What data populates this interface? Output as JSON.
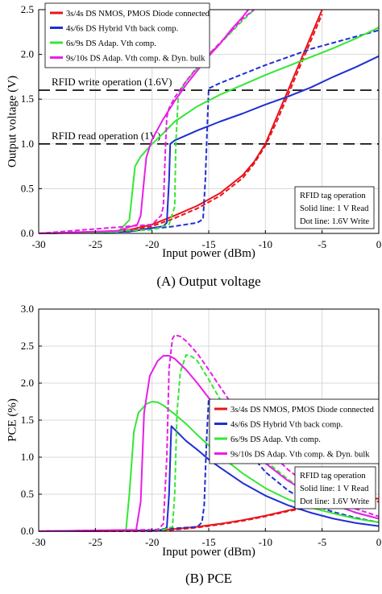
{
  "colors": {
    "red": "#e8141a",
    "blue": "#1f2fd0",
    "green": "#36e636",
    "magenta": "#e81ee8",
    "ref_line": "#000000"
  },
  "chart_data": [
    {
      "type": "line",
      "caption": "(A) Output voltage",
      "xlabel": "Input power (dBm)",
      "ylabel": "Output voltage (V)",
      "xlim": [
        -30,
        0
      ],
      "ylim": [
        0,
        2.5
      ],
      "xticks": [
        "-30",
        "-25",
        "-20",
        "-15",
        "-10",
        "-5",
        "0"
      ],
      "yticks": [
        "0.0",
        "0.5",
        "1.0",
        "1.5",
        "2.0",
        "2.5"
      ],
      "grid": true,
      "legend_position": "top-left",
      "legend": [
        "3s/4s DS NMOS, PMOS Diode connected",
        "4s/6s DS Hybrid Vth back comp.",
        "6s/9s DS Adap. Vth comp.",
        "9s/10s DS Adap. Vth comp. & Dyn. bulk"
      ],
      "note": [
        "RFID tag operation",
        "Solid line: 1 V Read",
        "Dot line: 1.6V Write"
      ],
      "reference_lines": [
        {
          "label": "RFID write operation (1.6V)",
          "y": 1.6
        },
        {
          "label": "RFID read operation (1V)",
          "y": 1.0
        }
      ],
      "series": [
        {
          "name": "3s/4s DS NMOS, PMOS Diode connected",
          "color_key": "red",
          "style": "solid",
          "x": [
            -30,
            -25,
            -22,
            -20,
            -18,
            -16,
            -14,
            -12,
            -11,
            -10,
            -9,
            -8,
            -7,
            -6,
            -5.5,
            -5
          ],
          "y": [
            0.0,
            0.01,
            0.04,
            0.1,
            0.2,
            0.31,
            0.45,
            0.65,
            0.8,
            1.0,
            1.3,
            1.6,
            1.9,
            2.2,
            2.35,
            2.5
          ]
        },
        {
          "name": "3s/4s DS NMOS, PMOS Diode connected",
          "color_key": "red",
          "style": "dashed",
          "x": [
            -30,
            -25,
            -22,
            -20,
            -18,
            -16,
            -14,
            -12,
            -11,
            -10,
            -9,
            -8,
            -7,
            -6,
            -5.5,
            -5
          ],
          "y": [
            0.0,
            0.01,
            0.03,
            0.08,
            0.17,
            0.28,
            0.42,
            0.62,
            0.78,
            0.98,
            1.25,
            1.55,
            1.85,
            2.15,
            2.3,
            2.45
          ]
        },
        {
          "name": "4s/6s DS Hybrid Vth back comp.",
          "color_key": "blue",
          "style": "solid",
          "x": [
            -30,
            -22,
            -19,
            -18.7,
            -18.5,
            -18.4,
            -18,
            -16,
            -14,
            -12,
            -10,
            -8,
            -6,
            -4,
            -2,
            0
          ],
          "y": [
            0.0,
            0.02,
            0.08,
            0.12,
            0.6,
            1.0,
            1.04,
            1.15,
            1.25,
            1.34,
            1.44,
            1.53,
            1.63,
            1.75,
            1.86,
            1.98
          ]
        },
        {
          "name": "4s/6s DS Hybrid Vth back comp.",
          "color_key": "blue",
          "style": "dashed",
          "x": [
            -30,
            -22,
            -18,
            -16,
            -15.5,
            -15.3,
            -15.1,
            -15,
            -14,
            -12,
            -10,
            -8,
            -6,
            -4,
            -2,
            0
          ],
          "y": [
            0.0,
            0.02,
            0.08,
            0.12,
            0.16,
            0.6,
            1.3,
            1.62,
            1.68,
            1.78,
            1.88,
            1.97,
            2.06,
            2.13,
            2.2,
            2.27
          ]
        },
        {
          "name": "6s/9s DS Adap. Vth comp.",
          "color_key": "green",
          "style": "solid",
          "x": [
            -30,
            -23,
            -22,
            -21.5,
            -21,
            -20,
            -19,
            -18,
            -16,
            -14,
            -12,
            -10,
            -8,
            -6,
            -4,
            -2,
            0
          ],
          "y": [
            0.0,
            0.02,
            0.15,
            0.75,
            0.86,
            1.0,
            1.12,
            1.25,
            1.42,
            1.55,
            1.66,
            1.77,
            1.87,
            1.97,
            2.07,
            2.18,
            2.3
          ]
        },
        {
          "name": "6s/9s DS Adap. Vth comp.",
          "color_key": "green",
          "style": "dashed",
          "x": [
            -30,
            -20,
            -18.5,
            -18.0,
            -17.9,
            -17.7,
            -17.5,
            -17,
            -16,
            -15,
            -14,
            -13,
            -12,
            -11
          ],
          "y": [
            0.0,
            0.04,
            0.1,
            0.3,
            1.0,
            1.5,
            1.6,
            1.7,
            1.85,
            2.0,
            2.12,
            2.25,
            2.38,
            2.5
          ]
        },
        {
          "name": "9s/10s DS Adap. Vth comp. & Dyn. bulk",
          "color_key": "magenta",
          "style": "solid",
          "x": [
            -30,
            -23,
            -21.3,
            -21.0,
            -20.7,
            -20.5,
            -20,
            -19,
            -18,
            -17,
            -16,
            -15,
            -14,
            -13,
            -12,
            -11.5
          ],
          "y": [
            0.0,
            0.03,
            0.1,
            0.2,
            0.6,
            0.85,
            1.05,
            1.28,
            1.48,
            1.66,
            1.82,
            1.98,
            2.12,
            2.28,
            2.42,
            2.5
          ]
        },
        {
          "name": "9s/10s DS Adap. Vth comp. & Dyn. bulk",
          "color_key": "magenta",
          "style": "dashed",
          "x": [
            -30,
            -20,
            -19.2,
            -19.0,
            -18.8,
            -18.7,
            -18.5,
            -18,
            -17,
            -16,
            -15,
            -14,
            -13,
            -12,
            -11
          ],
          "y": [
            0.0,
            0.1,
            0.2,
            0.3,
            1.0,
            1.3,
            1.4,
            1.52,
            1.7,
            1.86,
            2.0,
            2.13,
            2.26,
            2.4,
            2.5
          ]
        }
      ]
    },
    {
      "type": "line",
      "caption": "(B) PCE",
      "xlabel": "Input power (dBm)",
      "ylabel": "PCE (%)",
      "xlim": [
        -30,
        0
      ],
      "ylim": [
        0,
        3.0
      ],
      "xticks": [
        "-30",
        "-25",
        "-20",
        "-15",
        "-10",
        "-5",
        "0"
      ],
      "yticks": [
        "0.0",
        "0.5",
        "1.0",
        "1.5",
        "2.0",
        "2.5",
        "3.0"
      ],
      "grid": true,
      "legend_position": "top-right",
      "legend": [
        "3s/4s DS NMOS, PMOS Diode connected",
        "4s/6s DS Hybrid Vth back comp.",
        "6s/9s DS Adap. Vth comp.",
        "9s/10s DS Adap. Vth comp. & Dyn. bulk"
      ],
      "note": [
        "RFID tag operation",
        "Solid line: 1 V Read",
        "Dot line: 1.6V Write"
      ],
      "series": [
        {
          "name": "3s/4s DS NMOS, PMOS Diode connected",
          "color_key": "red",
          "style": "solid",
          "x": [
            -30,
            -25,
            -20,
            -18,
            -16,
            -14,
            -12,
            -10,
            -8,
            -6,
            -4,
            -2,
            0
          ],
          "y": [
            0.0,
            0.0,
            0.01,
            0.03,
            0.06,
            0.1,
            0.15,
            0.21,
            0.28,
            0.35,
            0.41,
            0.44,
            0.44
          ]
        },
        {
          "name": "3s/4s DS NMOS, PMOS Diode connected",
          "color_key": "red",
          "style": "dashed",
          "x": [
            -30,
            -25,
            -20,
            -18,
            -16,
            -14,
            -12,
            -10,
            -8,
            -6,
            -4,
            -2,
            0
          ],
          "y": [
            0.0,
            0.0,
            0.0,
            0.02,
            0.05,
            0.09,
            0.14,
            0.2,
            0.27,
            0.33,
            0.39,
            0.41,
            0.4
          ]
        },
        {
          "name": "4s/6s DS Hybrid Vth back comp.",
          "color_key": "blue",
          "style": "solid",
          "x": [
            -30,
            -20,
            -19,
            -18.7,
            -18.5,
            -18.3,
            -17,
            -16,
            -15,
            -14,
            -12,
            -10,
            -8,
            -6,
            -4,
            -2,
            0
          ],
          "y": [
            0.0,
            0.01,
            0.02,
            0.05,
            0.5,
            1.42,
            1.22,
            1.1,
            0.97,
            0.86,
            0.65,
            0.48,
            0.35,
            0.25,
            0.17,
            0.11,
            0.07
          ]
        },
        {
          "name": "4s/6s DS Hybrid Vth back comp.",
          "color_key": "blue",
          "style": "dashed",
          "x": [
            -30,
            -20,
            -16,
            -15.6,
            -15.4,
            -15.2,
            -15,
            -14,
            -13,
            -12,
            -10,
            -8,
            -6,
            -4,
            -2,
            0
          ],
          "y": [
            0.0,
            0.02,
            0.06,
            0.12,
            0.35,
            1.2,
            1.8,
            1.6,
            1.38,
            1.17,
            0.8,
            0.55,
            0.37,
            0.26,
            0.18,
            0.12
          ]
        },
        {
          "name": "6s/9s DS Adap. Vth comp.",
          "color_key": "green",
          "style": "solid",
          "x": [
            -30,
            -22.3,
            -22,
            -21.6,
            -21.2,
            -20.5,
            -20,
            -19.5,
            -19,
            -18,
            -17,
            -16,
            -14,
            -12,
            -10,
            -8,
            -6,
            -4,
            -2,
            0
          ],
          "y": [
            0.0,
            0.01,
            0.5,
            1.35,
            1.6,
            1.72,
            1.75,
            1.74,
            1.7,
            1.58,
            1.45,
            1.3,
            1.02,
            0.78,
            0.58,
            0.43,
            0.32,
            0.24,
            0.17,
            0.12
          ]
        },
        {
          "name": "6s/9s DS Adap. Vth comp.",
          "color_key": "green",
          "style": "dashed",
          "x": [
            -30,
            -19,
            -18.2,
            -18.0,
            -17.8,
            -17.5,
            -17,
            -16.5,
            -16,
            -15,
            -14,
            -12,
            -10,
            -8,
            -6,
            -4,
            -2,
            0
          ],
          "y": [
            0.0,
            0.02,
            0.06,
            0.5,
            1.6,
            2.15,
            2.38,
            2.36,
            2.3,
            2.05,
            1.78,
            1.3,
            0.95,
            0.7,
            0.5,
            0.36,
            0.25,
            0.17
          ]
        },
        {
          "name": "9s/10s DS Adap. Vth comp. & Dyn. bulk",
          "color_key": "magenta",
          "style": "solid",
          "x": [
            -30,
            -21.4,
            -21.0,
            -20.7,
            -20.2,
            -19.5,
            -19,
            -18.5,
            -18,
            -17,
            -16,
            -15,
            -14,
            -12,
            -10,
            -8,
            -6,
            -4,
            -2,
            0
          ],
          "y": [
            0.0,
            0.02,
            0.4,
            1.6,
            2.1,
            2.3,
            2.37,
            2.37,
            2.33,
            2.18,
            2.0,
            1.8,
            1.6,
            1.22,
            0.92,
            0.68,
            0.5,
            0.36,
            0.25,
            0.17
          ]
        },
        {
          "name": "9s/10s DS Adap. Vth comp. & Dyn. bulk",
          "color_key": "magenta",
          "style": "dashed",
          "x": [
            -30,
            -19.5,
            -19,
            -18.7,
            -18.5,
            -18.2,
            -18,
            -17.5,
            -17,
            -16,
            -15,
            -14,
            -12,
            -10,
            -8,
            -6,
            -4,
            -2,
            0
          ],
          "y": [
            0.0,
            0.02,
            0.1,
            1.0,
            2.2,
            2.6,
            2.65,
            2.63,
            2.57,
            2.4,
            2.18,
            1.95,
            1.5,
            1.13,
            0.83,
            0.6,
            0.43,
            0.3,
            0.2
          ]
        }
      ]
    }
  ]
}
